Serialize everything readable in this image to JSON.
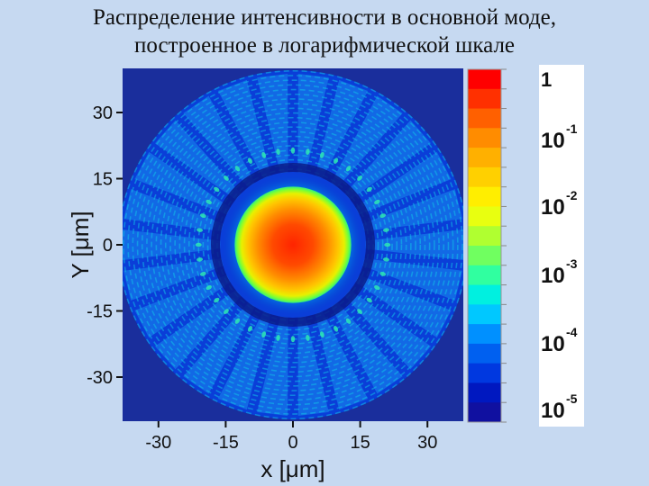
{
  "title_line1": "Распределение интенсивности в основной моде,",
  "title_line2": "построенное в логарифмической шкале",
  "chart_data": {
    "type": "heatmap",
    "title": "Распределение интенсивности в основной моде, построенное в логарифмической шкале",
    "xlabel": "x [μm]",
    "ylabel": "Y [μm]",
    "xlim": [
      -38,
      38
    ],
    "ylim": [
      -40,
      40
    ],
    "x_ticks": [
      -30,
      -15,
      0,
      15,
      30
    ],
    "y_ticks": [
      30,
      15,
      0,
      -15,
      -30
    ],
    "scale": "log",
    "colorbar": {
      "ticks": [
        {
          "base": "1",
          "exp": ""
        },
        {
          "base": "10",
          "exp": "-1"
        },
        {
          "base": "10",
          "exp": "-2"
        },
        {
          "base": "10",
          "exp": "-3"
        },
        {
          "base": "10",
          "exp": "-4"
        },
        {
          "base": "10",
          "exp": "-5"
        }
      ]
    },
    "core_radius_um": 13,
    "cladding_radius_um": 39,
    "colors": {
      "background": "#c6d9f1",
      "plot_background": "#1a2e9c",
      "low": "#0020c8",
      "high": "#ff0000"
    }
  }
}
